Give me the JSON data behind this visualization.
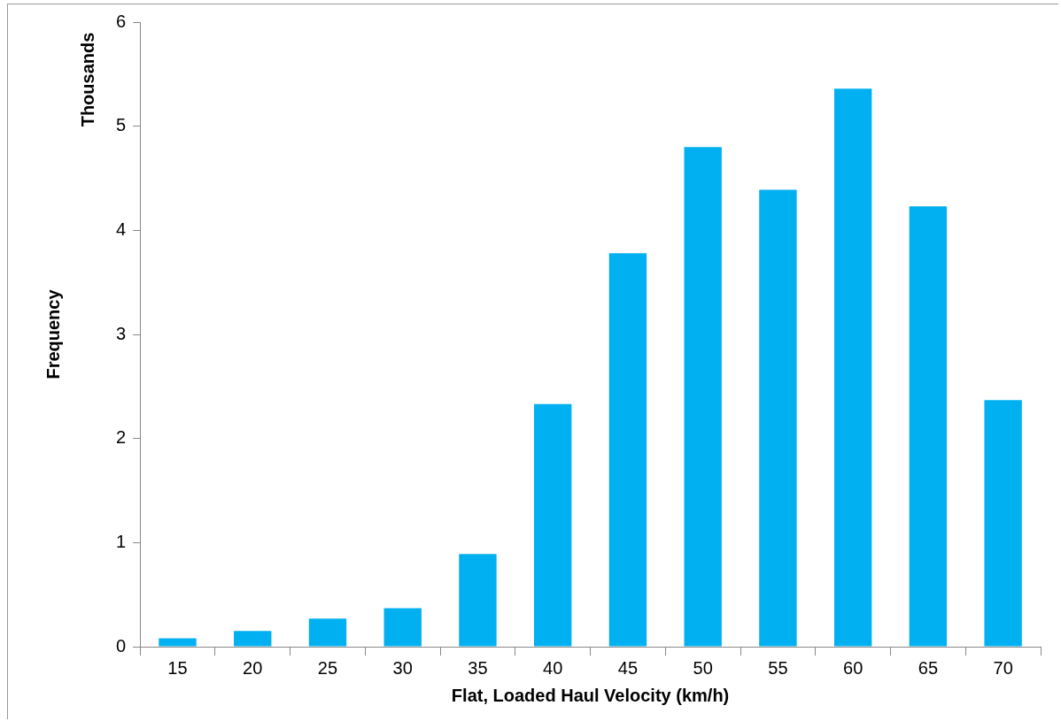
{
  "chart_data": {
    "type": "bar",
    "xlabel": "Flat, Loaded Haul Velocity (km/h)",
    "ylabel": "Frequency",
    "annotations": [
      "Thousands"
    ],
    "categories": [
      "15",
      "20",
      "25",
      "30",
      "35",
      "40",
      "45",
      "50",
      "55",
      "60",
      "65",
      "70"
    ],
    "values": [
      0.08,
      0.15,
      0.27,
      0.37,
      0.89,
      2.33,
      3.78,
      4.8,
      4.39,
      5.36,
      4.23,
      2.37
    ],
    "color": "#00b0f0",
    "ylim": [
      0,
      6
    ],
    "yticks": [
      0,
      1,
      2,
      3,
      4,
      5,
      6
    ],
    "grid": false,
    "legend": false
  }
}
